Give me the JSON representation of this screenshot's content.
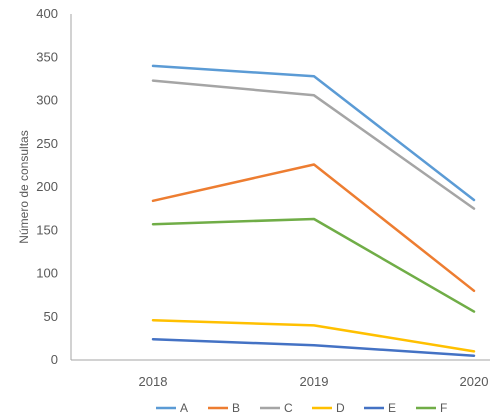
{
  "chart_data": {
    "type": "line",
    "title": "",
    "xlabel": "",
    "ylabel": "Número de consultas",
    "x": [
      "2018",
      "2019",
      "2020"
    ],
    "ylim": [
      0,
      400
    ],
    "yticks": [
      0,
      50,
      100,
      150,
      200,
      250,
      300,
      350,
      400
    ],
    "grid": false,
    "legend_position": "bottom",
    "series": [
      {
        "name": "A",
        "color": "#5b9bd5",
        "values": [
          340,
          328,
          185
        ]
      },
      {
        "name": "B",
        "color": "#ed7d31",
        "values": [
          184,
          226,
          80
        ]
      },
      {
        "name": "C",
        "color": "#a5a5a5",
        "values": [
          323,
          306,
          175
        ]
      },
      {
        "name": "D",
        "color": "#ffc000",
        "values": [
          46,
          40,
          10
        ]
      },
      {
        "name": "E",
        "color": "#4472c4",
        "values": [
          24,
          17,
          5
        ]
      },
      {
        "name": "F",
        "color": "#70ad47",
        "values": [
          157,
          163,
          56
        ]
      }
    ]
  }
}
